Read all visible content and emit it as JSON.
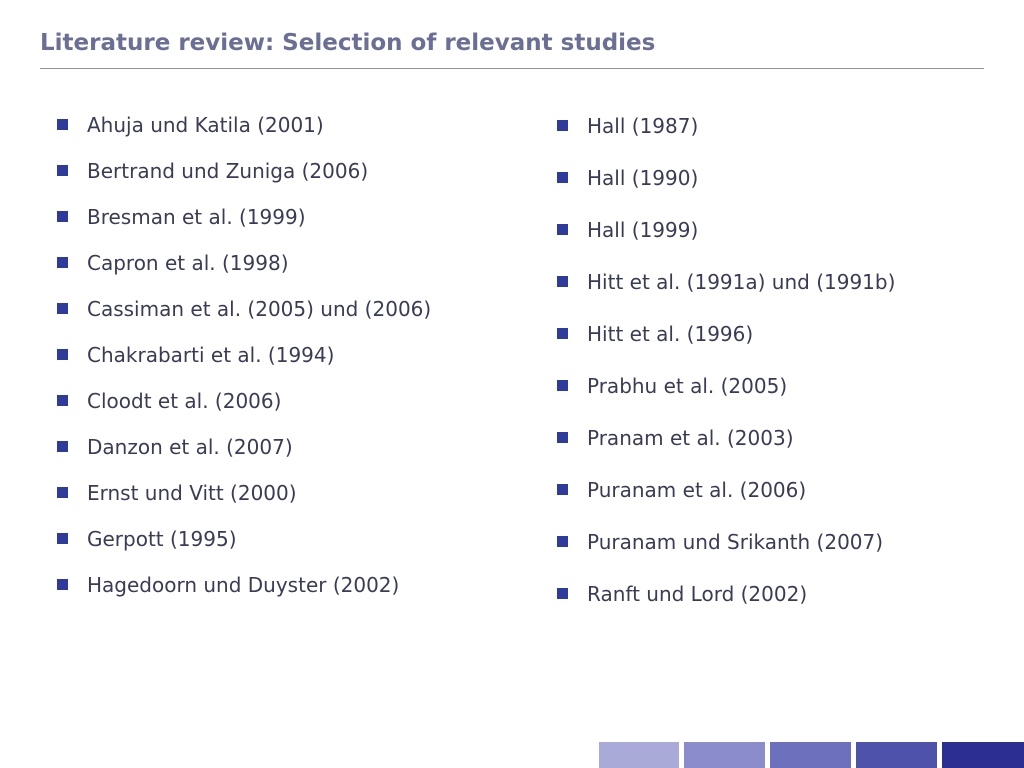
{
  "slide": {
    "title": "Literature review: Selection of relevant studies"
  },
  "left_list": {
    "items": [
      "Ahuja und Katila (2001)",
      "Bertrand und Zuniga (2006)",
      "Bresman et al. (1999)",
      "Capron et al. (1998)",
      "Cassiman et al. (2005) und (2006)",
      "Chakrabarti et al. (1994)",
      "Cloodt et al. (2006)",
      "Danzon et al. (2007)",
      "Ernst und Vitt (2000)",
      "Gerpott (1995)",
      "Hagedoorn und Duyster (2002)"
    ]
  },
  "right_list": {
    "items": [
      "Hall (1987)",
      "Hall (1990)",
      "Hall (1999)",
      "Hitt et al. (1991a) und (1991b)",
      "Hitt et al. (1996)",
      "Prabhu et al. (2005)",
      "Pranam et al. (2003)",
      "Puranam et al. (2006)",
      "Puranam und Srikanth (2007)",
      "Ranft und Lord (2002)"
    ]
  },
  "colors": {
    "title": "#6b6f96",
    "bullet": "#2f3b9a",
    "footer_bars": [
      "#aaaad8",
      "#8a8ccb",
      "#6d70bd",
      "#4f52ab",
      "#2c2e92"
    ]
  },
  "icons": {
    "bullet": "square-bullet-icon"
  }
}
